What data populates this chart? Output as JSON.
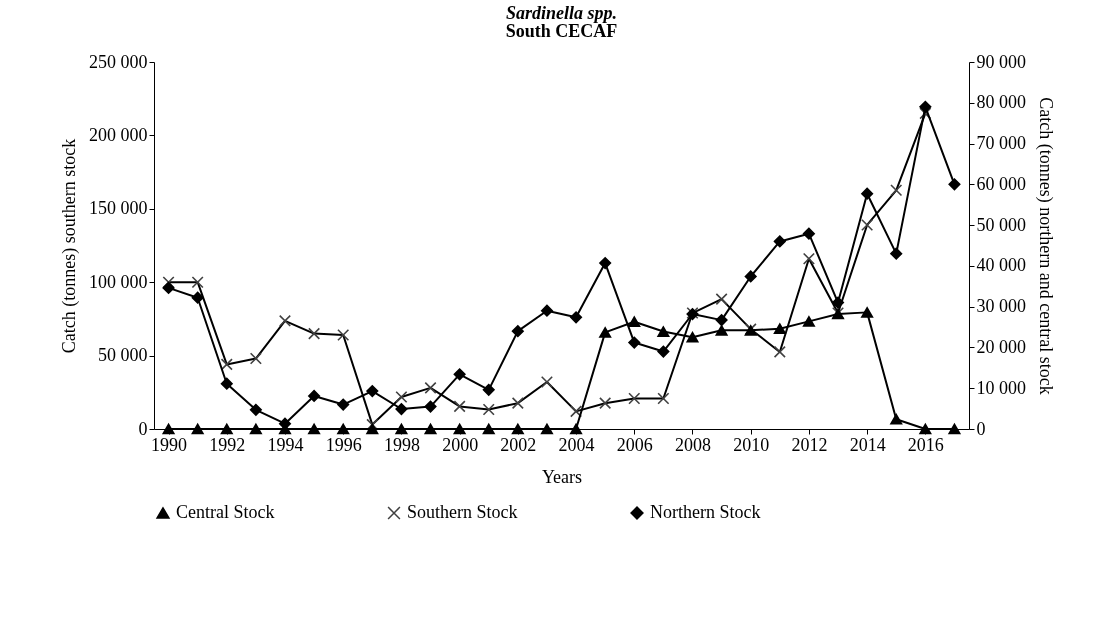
{
  "chart_data": {
    "type": "line",
    "title": "Sardinella spp.",
    "subtitle": "South CECAF",
    "xlabel": "Years",
    "ylabel": "Catch (tonnes) southern stock",
    "y2label": "Catch (tonnes) northern and central stock",
    "x": [
      1990,
      1991,
      1992,
      1993,
      1994,
      1995,
      1996,
      1997,
      1998,
      1999,
      2000,
      2001,
      2002,
      2003,
      2004,
      2005,
      2006,
      2007,
      2008,
      2009,
      2010,
      2011,
      2012,
      2013,
      2014,
      2015,
      2016,
      2017
    ],
    "xlim": [
      1989.5,
      2017.5
    ],
    "xticks": [
      1990,
      1992,
      1994,
      1996,
      1998,
      2000,
      2002,
      2004,
      2006,
      2008,
      2010,
      2012,
      2014,
      2016
    ],
    "ylim": [
      0,
      250000
    ],
    "yticks": [
      {
        "value": 0,
        "label": "0"
      },
      {
        "value": 50000,
        "label": "50 000"
      },
      {
        "value": 100000,
        "label": "100 000"
      },
      {
        "value": 150000,
        "label": "150 000"
      },
      {
        "value": 200000,
        "label": "200 000"
      },
      {
        "value": 250000,
        "label": "250 000"
      }
    ],
    "y2lim": [
      0,
      90000
    ],
    "y2ticks": [
      {
        "value": 0,
        "label": "0"
      },
      {
        "value": 10000,
        "label": "10 000"
      },
      {
        "value": 20000,
        "label": "20 000"
      },
      {
        "value": 30000,
        "label": "30 000"
      },
      {
        "value": 40000,
        "label": "40 000"
      },
      {
        "value": 50000,
        "label": "50 000"
      },
      {
        "value": 60000,
        "label": "60 000"
      },
      {
        "value": 70000,
        "label": "70 000"
      },
      {
        "value": 80000,
        "label": "80 000"
      },
      {
        "value": 90000,
        "label": "90 000"
      }
    ],
    "grid": false,
    "legend": "bottom",
    "line_style": "solid",
    "series": [
      {
        "name": "Central Stock",
        "color": "#000000",
        "marker": "triangle",
        "axis": "y2",
        "values": [
          0,
          0,
          0,
          0,
          0,
          0,
          0,
          0,
          0,
          0,
          0,
          0,
          0,
          0,
          0,
          23700,
          26300,
          23900,
          22500,
          24200,
          24200,
          24600,
          26400,
          28200,
          28600,
          2400,
          0,
          0
        ]
      },
      {
        "name": "Southern Stock",
        "color": "#404040",
        "marker": "cross",
        "values": [
          100000,
          100000,
          44000,
          48000,
          73700,
          65000,
          64000,
          3000,
          21800,
          28000,
          15400,
          13300,
          17600,
          32000,
          12000,
          17600,
          20800,
          20800,
          79000,
          88500,
          68000,
          52500,
          116000,
          79000,
          139000,
          162600,
          215000,
          null
        ]
      },
      {
        "name": "Northern Stock",
        "color": "#000000",
        "marker": "diamond",
        "axis": "y2",
        "values": [
          34600,
          32200,
          11100,
          4700,
          1300,
          8100,
          6000,
          9300,
          4900,
          5500,
          13400,
          9600,
          24000,
          29000,
          27400,
          40700,
          21200,
          19000,
          28200,
          26700,
          37400,
          46000,
          47900,
          31000,
          57700,
          43000,
          79000,
          60000
        ]
      }
    ]
  }
}
